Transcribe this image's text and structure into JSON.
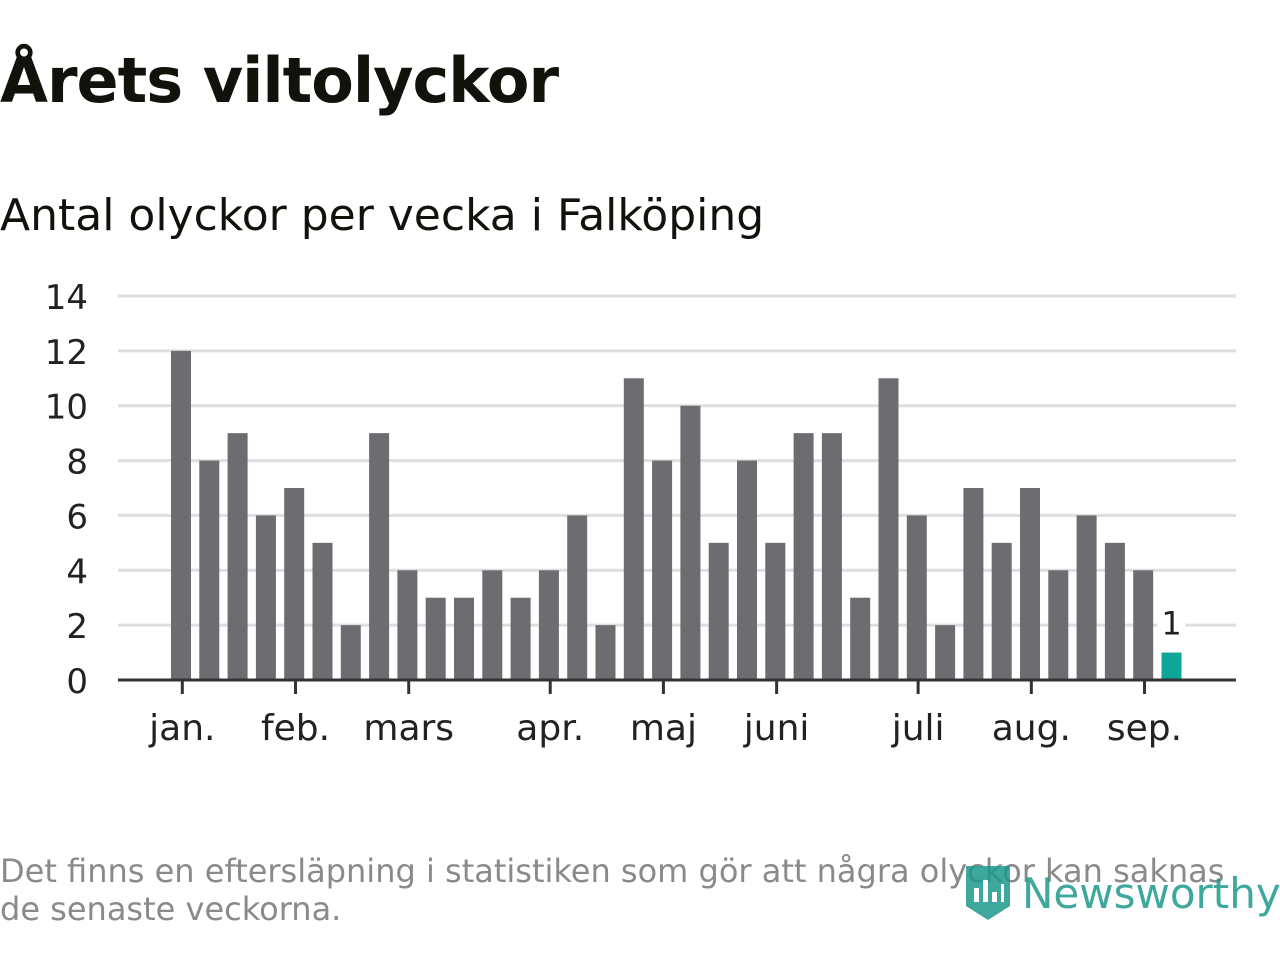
{
  "title": "Årets viltolyckor",
  "subtitle": "Antal olyckor per vecka i Falköping",
  "footnote": "Det finns en eftersläpning i statistiken som gör att några olyckor kan saknas de senaste veckorna.",
  "logo": {
    "text": "Newsworthy",
    "icon": "bar-chart-badge-icon",
    "color": "#1e9a8c"
  },
  "colors": {
    "bar": "#6d6c71",
    "highlight": "#0fa69a",
    "grid": "#dedede",
    "axis": "#333333"
  },
  "chart_data": {
    "type": "bar",
    "title": "Årets viltolyckor",
    "subtitle": "Antal olyckor per vecka i Falköping",
    "xlabel": "",
    "ylabel": "",
    "ylim": [
      0,
      14
    ],
    "yticks": [
      0,
      2,
      4,
      6,
      8,
      10,
      12,
      14
    ],
    "grid": true,
    "values": [
      12,
      8,
      9,
      6,
      7,
      5,
      2,
      9,
      4,
      3,
      3,
      4,
      3,
      4,
      6,
      2,
      11,
      8,
      10,
      5,
      8,
      5,
      9,
      9,
      3,
      11,
      6,
      2,
      7,
      5,
      7,
      4,
      6,
      5,
      4,
      1
    ],
    "highlight_index": 35,
    "highlight_label": "1",
    "month_ticks": [
      {
        "label": "jan.",
        "week_pos": 0.4
      },
      {
        "label": "feb.",
        "week_pos": 4.4
      },
      {
        "label": "mars",
        "week_pos": 8.4
      },
      {
        "label": "apr.",
        "week_pos": 13.4
      },
      {
        "label": "maj",
        "week_pos": 17.4
      },
      {
        "label": "juni",
        "week_pos": 21.4
      },
      {
        "label": "juli",
        "week_pos": 26.4
      },
      {
        "label": "aug.",
        "week_pos": 30.4
      },
      {
        "label": "sep.",
        "week_pos": 34.4
      }
    ]
  }
}
